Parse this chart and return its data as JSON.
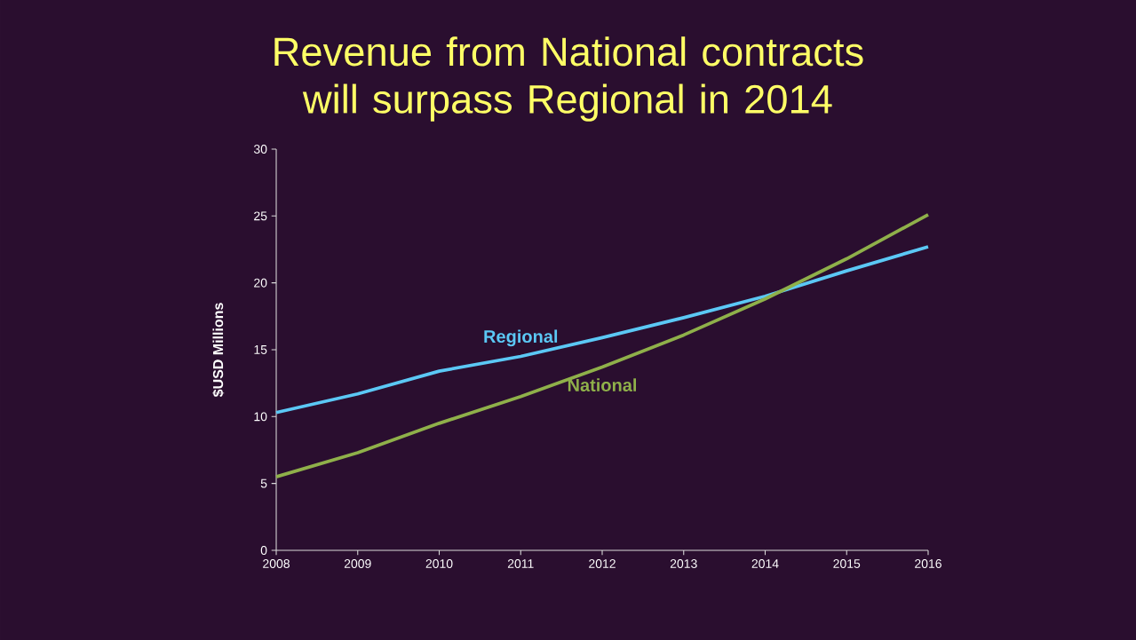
{
  "chart_data": {
    "type": "line",
    "title": "Revenue from National contracts will surpass Regional in 2014",
    "ylabel": "$USD Millions",
    "x": [
      2008,
      2009,
      2010,
      2011,
      2012,
      2013,
      2014,
      2015,
      2016
    ],
    "series": [
      {
        "name": "Regional",
        "color": "#5bc8f5",
        "values": [
          10.3,
          11.7,
          13.4,
          14.5,
          15.9,
          17.4,
          19.0,
          20.9,
          22.7
        ]
      },
      {
        "name": "National",
        "color": "#8fb04a",
        "values": [
          5.5,
          7.3,
          9.5,
          11.5,
          13.7,
          16.1,
          18.8,
          21.8,
          25.1
        ]
      }
    ],
    "xlim": [
      2008,
      2016
    ],
    "xticks": [
      2008,
      2009,
      2010,
      2011,
      2012,
      2013,
      2014,
      2015,
      2016
    ],
    "ylim": [
      0,
      30
    ],
    "yticks": [
      0,
      5,
      10,
      15,
      20,
      25,
      30
    ],
    "marker": "none",
    "line_style": "solid"
  }
}
